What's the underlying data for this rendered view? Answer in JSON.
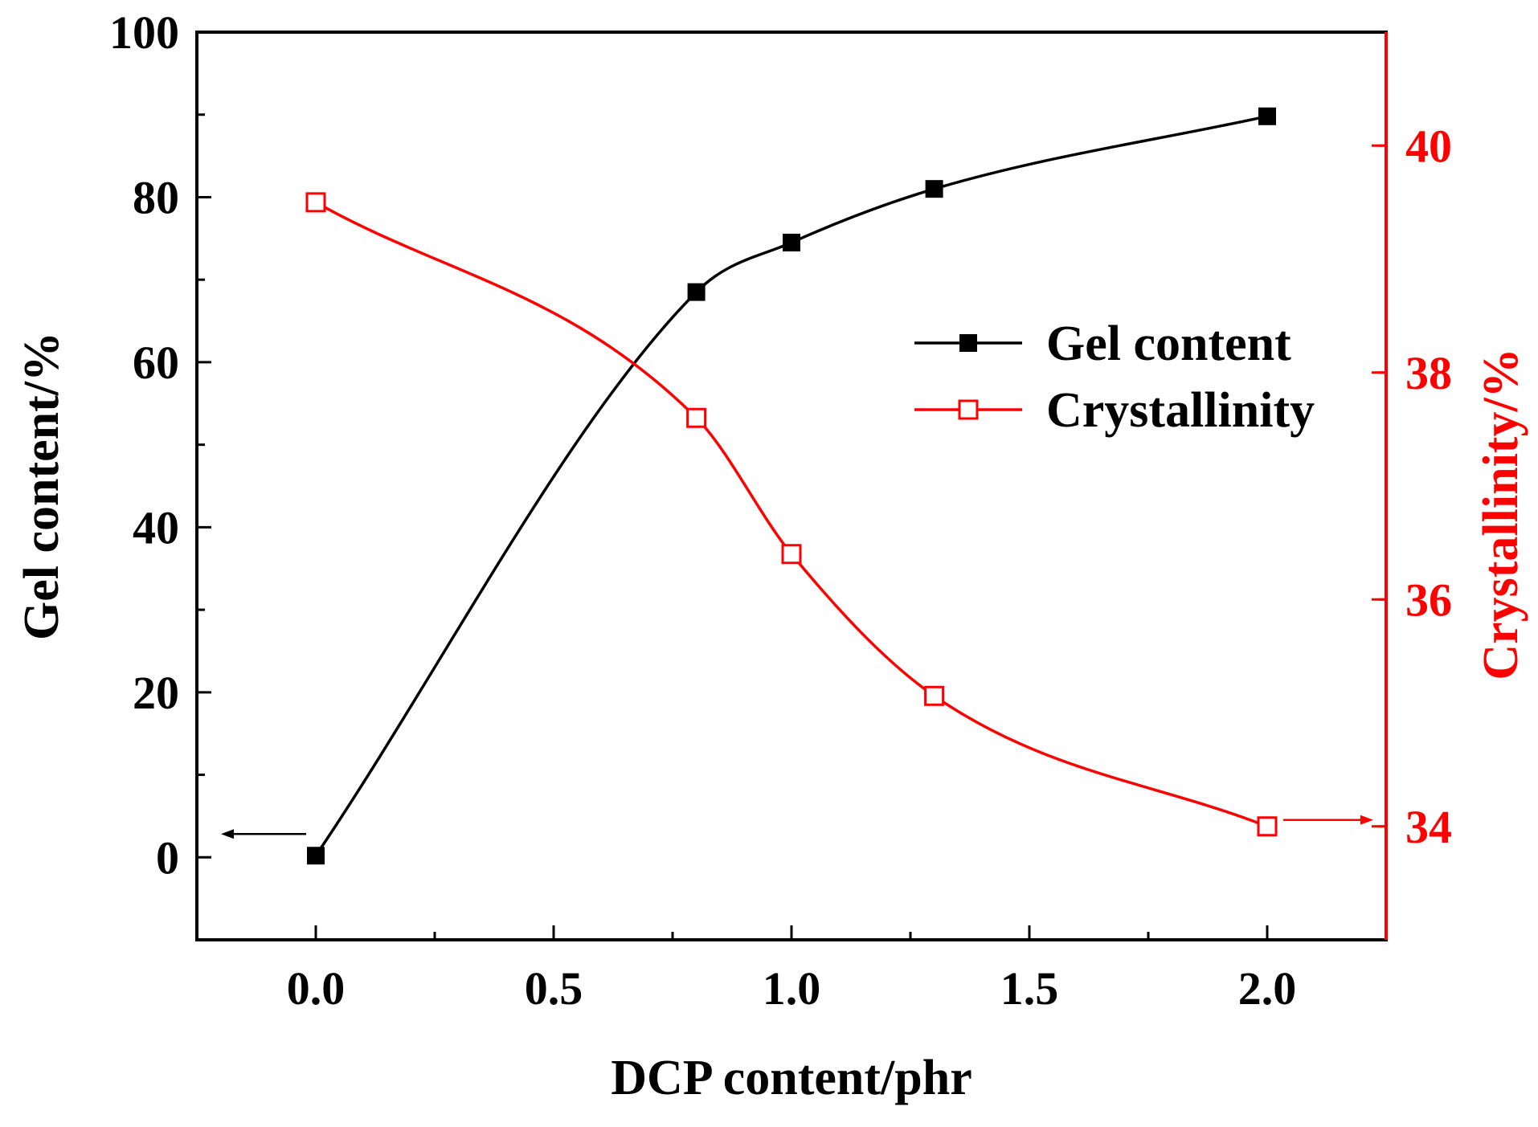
{
  "chart_data": {
    "type": "line",
    "xlabel": "DCP content/phr",
    "ylabel_left": "Gel content/%",
    "ylabel_right": "Crystallinity/%",
    "xlim": [
      -0.25,
      2.25
    ],
    "ylim_left": [
      -10,
      100
    ],
    "ylim_right": [
      33,
      41
    ],
    "x_ticks": [
      0.0,
      0.5,
      1.0,
      1.5,
      2.0
    ],
    "x_tick_labels": [
      "0.0",
      "0.5",
      "1.0",
      "1.5",
      "2.0"
    ],
    "y_left_ticks": [
      0,
      20,
      40,
      60,
      80,
      100
    ],
    "y_left_tick_labels": [
      "0",
      "20",
      "40",
      "60",
      "80",
      "100"
    ],
    "y_right_ticks": [
      34,
      36,
      38,
      40
    ],
    "y_right_tick_labels": [
      "34",
      "36",
      "38",
      "40"
    ],
    "grid": false,
    "legend_position": "center-right",
    "series": [
      {
        "name": "Gel content",
        "axis": "left",
        "color": "#000000",
        "marker": "filled-square",
        "x": [
          0.0,
          0.8,
          1.0,
          1.3,
          2.0
        ],
        "values": [
          0.2,
          68.5,
          74.5,
          81.0,
          89.8
        ]
      },
      {
        "name": "Crystallinity",
        "axis": "right",
        "color": "#ff0000",
        "marker": "open-square",
        "x": [
          0.0,
          0.8,
          1.0,
          1.3,
          2.0
        ],
        "values": [
          39.5,
          37.6,
          36.4,
          35.15,
          34.0
        ]
      }
    ],
    "annotations": [
      {
        "type": "arrow",
        "points_to": "left-axis",
        "series": "Gel content"
      },
      {
        "type": "arrow",
        "points_to": "right-axis",
        "series": "Crystallinity"
      }
    ]
  }
}
